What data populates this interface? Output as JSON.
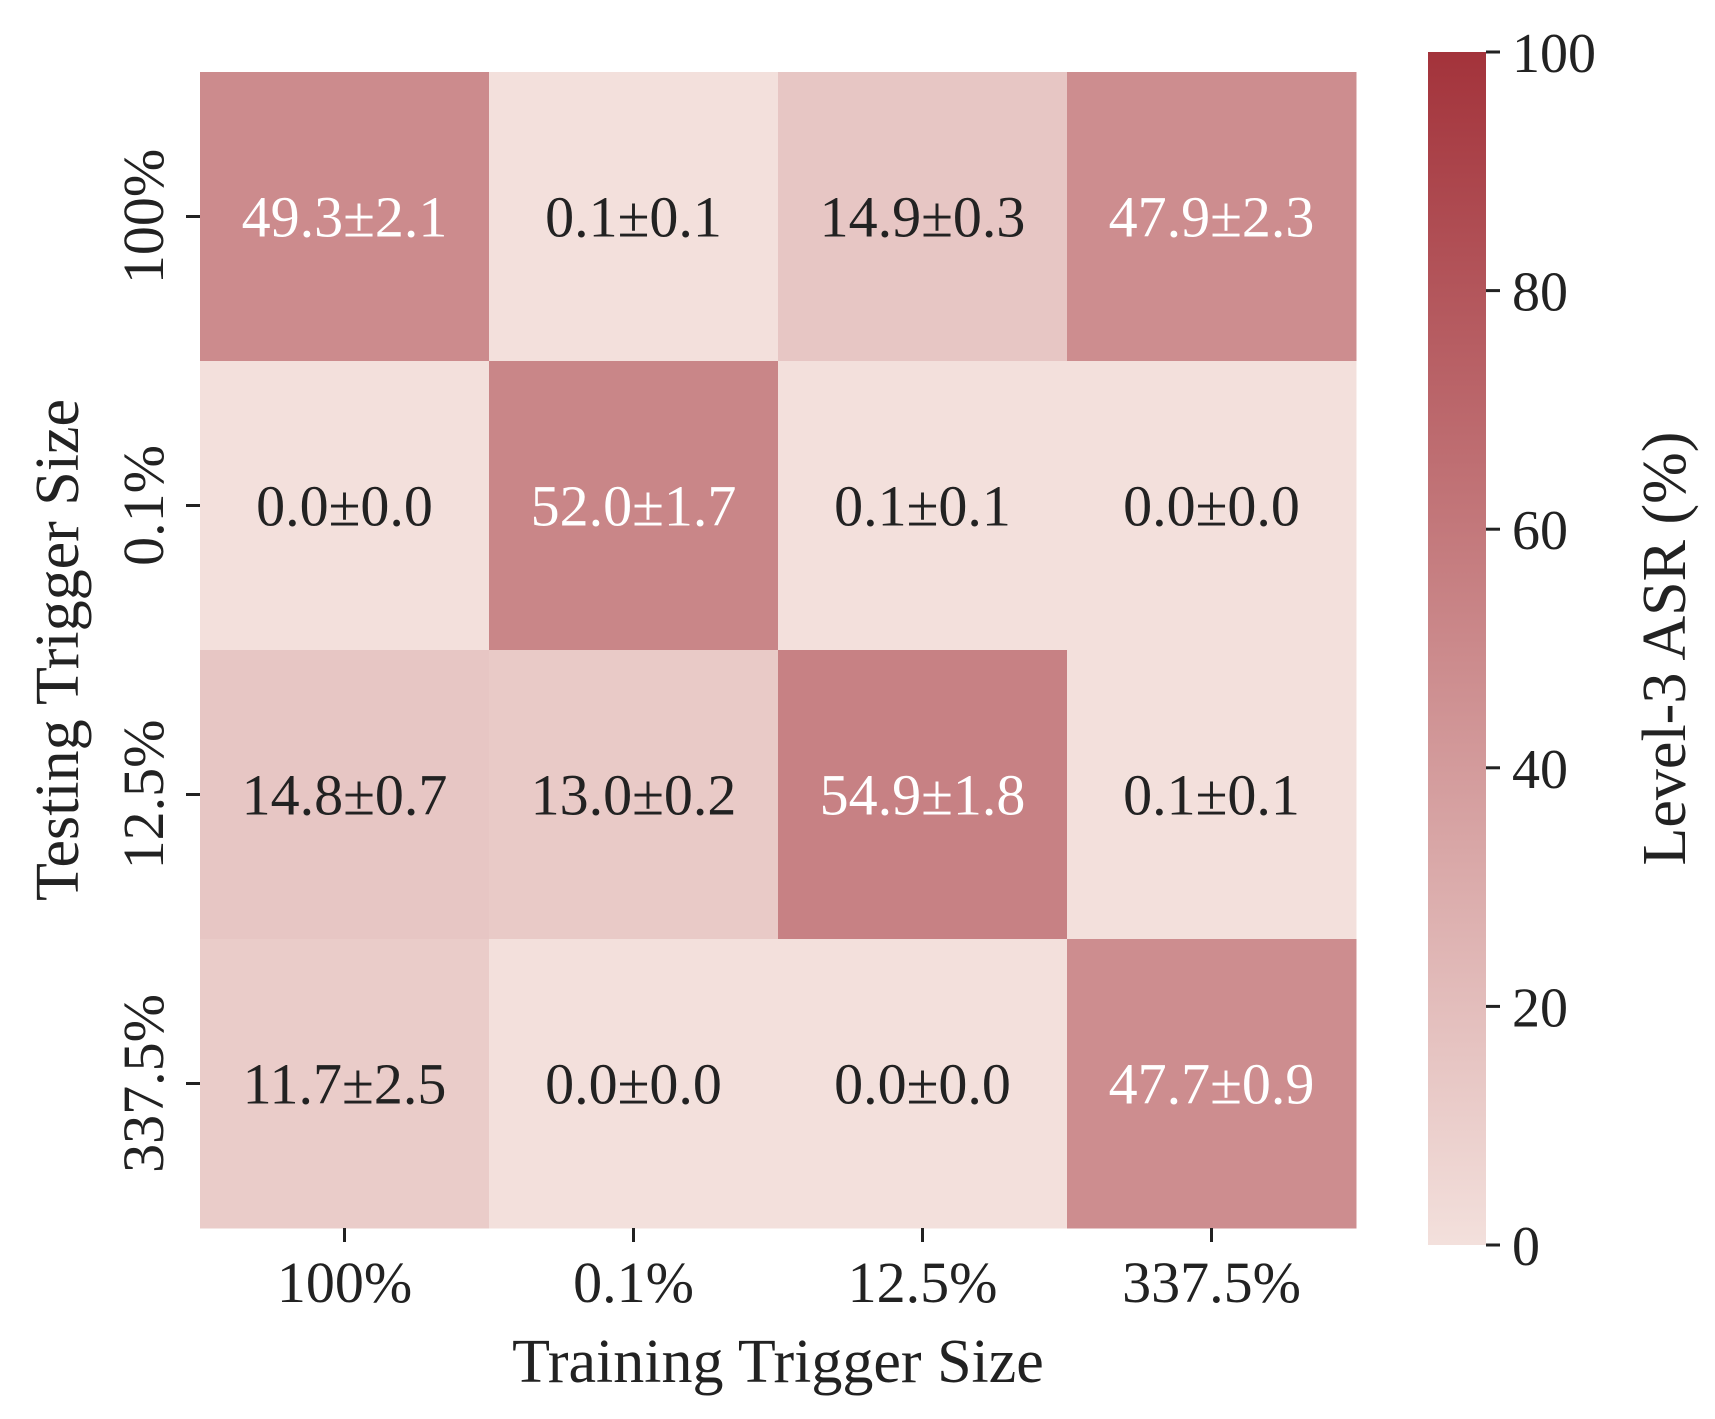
{
  "chart_data": {
    "type": "heatmap",
    "xlabel": "Training Trigger Size",
    "ylabel": "Testing Trigger Size",
    "x_categories": [
      "100%",
      "0.1%",
      "12.5%",
      "337.5%"
    ],
    "y_categories": [
      "100%",
      "0.1%",
      "12.5%",
      "337.5%"
    ],
    "values": [
      [
        49.3,
        0.1,
        14.9,
        47.9
      ],
      [
        0.0,
        52.0,
        0.1,
        0.0
      ],
      [
        14.8,
        13.0,
        54.9,
        0.1
      ],
      [
        11.7,
        0.0,
        0.0,
        47.7
      ]
    ],
    "cell_labels": [
      [
        "49.3±2.1",
        "0.1±0.1",
        "14.9±0.3",
        "47.9±2.3"
      ],
      [
        "0.0±0.0",
        "52.0±1.7",
        "0.1±0.1",
        "0.0±0.0"
      ],
      [
        "14.8±0.7",
        "13.0±0.2",
        "54.9±1.8",
        "0.1±0.1"
      ],
      [
        "11.7±2.5",
        "0.0±0.0",
        "0.0±0.0",
        "47.7±0.9"
      ]
    ],
    "colorbar": {
      "label": "Level-3 ASR (%)",
      "range": [
        0,
        100
      ],
      "ticks": [
        "0",
        "20",
        "40",
        "60",
        "80",
        "100"
      ],
      "low_color": "#f3e0dc",
      "high_color": "#a3333b"
    },
    "text_colors": {
      "dark": "#222222",
      "light": "#ffffff"
    },
    "grid": false,
    "legend": "none"
  }
}
